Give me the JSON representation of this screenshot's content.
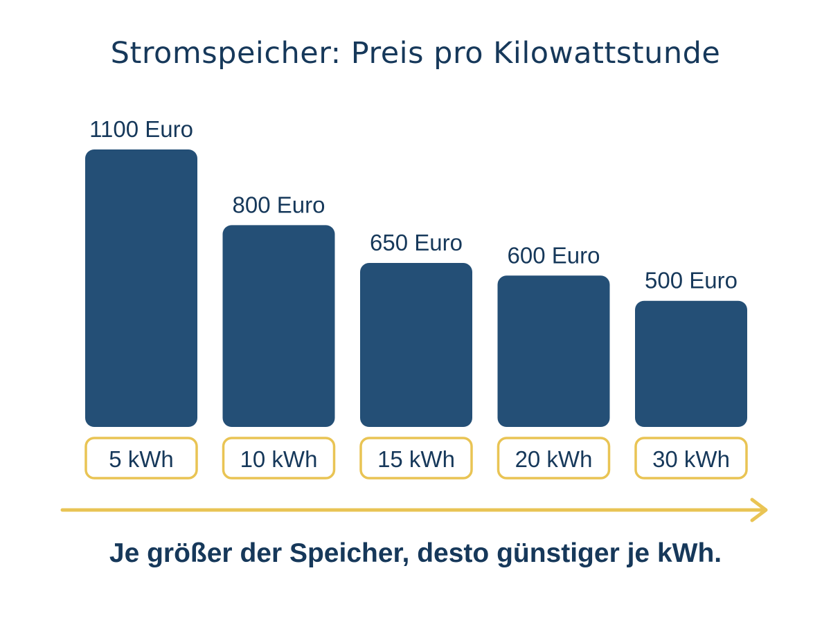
{
  "colors": {
    "bar": "#244f76",
    "text": "#16385a",
    "accent": "#e9c454"
  },
  "chart_data": {
    "type": "bar",
    "title": "Stromspeicher: Preis pro Kilowattstunde",
    "categories": [
      "5 kWh",
      "10 kWh",
      "15 kWh",
      "20 kWh",
      "30 kWh"
    ],
    "values": [
      1100,
      800,
      650,
      600,
      500
    ],
    "value_labels": [
      "1100 Euro",
      "800 Euro",
      "650 Euro",
      "600 Euro",
      "500 Euro"
    ],
    "unit": "Euro",
    "xlabel": "",
    "ylabel": "",
    "ylim": [
      0,
      1100
    ],
    "grid": false,
    "legend": "none",
    "annotation": "Je größer der Speicher, desto günstiger je kWh."
  }
}
